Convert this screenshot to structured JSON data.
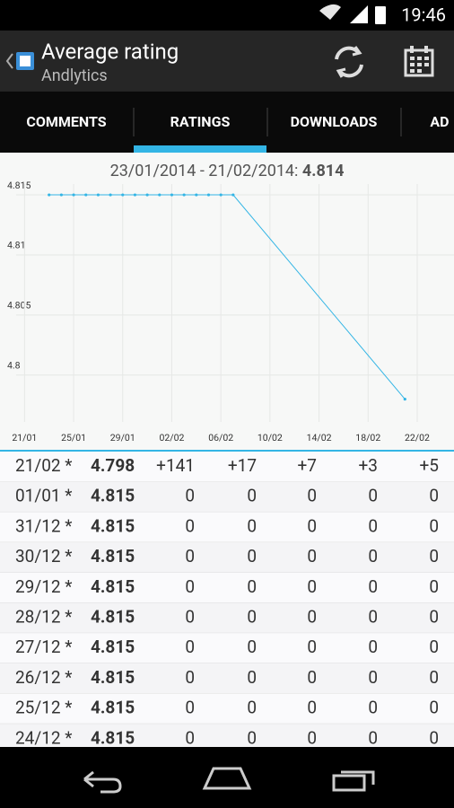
{
  "status_bar": {
    "time": "19:46"
  },
  "action_bar": {
    "title": "Average rating",
    "subtitle": "Andlytics"
  },
  "tabs": [
    "COMMENTS",
    "RATINGS",
    "DOWNLOADS",
    "AD"
  ],
  "chart_data": {
    "type": "line",
    "title": "23/01/2014 - 21/02/2014:",
    "title_value": 4.814,
    "x": [
      "23/01",
      "24/01",
      "25/01",
      "26/01",
      "27/01",
      "28/01",
      "29/01",
      "30/01",
      "31/01",
      "01/02",
      "02/02",
      "03/02",
      "04/02",
      "05/02",
      "06/02",
      "07/02",
      "21/02"
    ],
    "series": [
      {
        "color": "#33b5e5",
        "values": [
          4.815,
          4.815,
          4.815,
          4.815,
          4.815,
          4.815,
          4.815,
          4.815,
          4.815,
          4.815,
          4.815,
          4.815,
          4.815,
          4.815,
          4.815,
          4.815,
          4.798
        ]
      }
    ],
    "xlim": [
      "19/01",
      "25/02"
    ],
    "xticks": [
      "21/01",
      "25/01",
      "29/01",
      "02/02",
      "06/02",
      "10/02",
      "14/02",
      "18/02",
      "22/02"
    ],
    "ylim": [
      4.7961,
      4.8159
    ],
    "yticks": [
      4.8,
      4.805,
      4.81,
      4.815
    ],
    "grid": true
  },
  "table": {
    "rows": [
      [
        "21/02 *",
        "4.798",
        "+141",
        "+17",
        "+7",
        "+3",
        "+5"
      ],
      [
        "01/01 *",
        "4.815",
        "0",
        "0",
        "0",
        "0",
        "0"
      ],
      [
        "31/12 *",
        "4.815",
        "0",
        "0",
        "0",
        "0",
        "0"
      ],
      [
        "30/12 *",
        "4.815",
        "0",
        "0",
        "0",
        "0",
        "0"
      ],
      [
        "29/12 *",
        "4.815",
        "0",
        "0",
        "0",
        "0",
        "0"
      ],
      [
        "28/12 *",
        "4.815",
        "0",
        "0",
        "0",
        "0",
        "0"
      ],
      [
        "27/12 *",
        "4.815",
        "0",
        "0",
        "0",
        "0",
        "0"
      ],
      [
        "26/12 *",
        "4.815",
        "0",
        "0",
        "0",
        "0",
        "0"
      ],
      [
        "25/12 *",
        "4.815",
        "0",
        "0",
        "0",
        "0",
        "0"
      ],
      [
        "24/12 *",
        "4.815",
        "0",
        "0",
        "0",
        "0",
        "0"
      ]
    ]
  }
}
